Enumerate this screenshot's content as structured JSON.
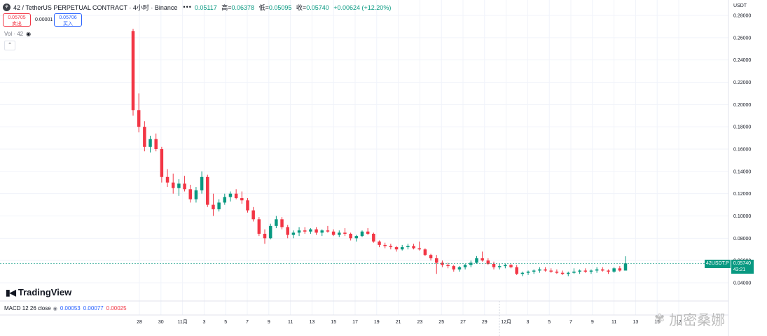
{
  "header": {
    "symbol_icon": "chart-logo-icon",
    "title": "42 / TetherUS PERPETUAL CONTRACT · 4小时 · Binance",
    "ohlc_open_value": "0.05117",
    "ohlc_high_label": "高=",
    "ohlc_high_value": "0.06378",
    "ohlc_low_label": "低=",
    "ohlc_low_value": "0.05095",
    "ohlc_close_label": "收=",
    "ohlc_close_value": "0.05740",
    "ohlc_change": "+0.00624 (+12.20%)"
  },
  "trade": {
    "sell_price": "0.05705",
    "sell_label": "卖出",
    "spread": "0.00001",
    "buy_price": "0.05706",
    "buy_label": "买入"
  },
  "volume": {
    "label": "Vol · 42"
  },
  "price_scale": {
    "unit": "USDT"
  },
  "last_price_tag": {
    "symbol": "42USDT.P",
    "price": "0.05740",
    "countdown": "43:21"
  },
  "macd": {
    "label": "MACD 12 26 close",
    "value1": "0.00053",
    "value2": "0.00077",
    "value3": "0.00025"
  },
  "branding": {
    "logo_text": "TradingView"
  },
  "watermark": {
    "text": "加密桑娜"
  },
  "colors": {
    "up": "#089981",
    "down": "#f23645",
    "accent": "#2962ff",
    "grid": "#f0f3fa"
  },
  "chart_data": {
    "type": "candlestick",
    "title": "42 / TetherUS PERPETUAL CONTRACT · 4小时 · Binance",
    "ylim": [
      0.04,
      0.28
    ],
    "y_ticks": [
      "0.28000",
      "0.26000",
      "0.24000",
      "0.22000",
      "0.20000",
      "0.18000",
      "0.16000",
      "0.14000",
      "0.12000",
      "0.10000",
      "0.08000",
      "0.06000",
      "0.04000"
    ],
    "x_ticks": [
      "28",
      "30",
      "11月",
      "3",
      "5",
      "7",
      "9",
      "11",
      "13",
      "15",
      "17",
      "19",
      "21",
      "23",
      "25",
      "27",
      "29",
      "12月",
      "3",
      "5",
      "7",
      "9",
      "11",
      "13",
      "15",
      "17"
    ],
    "grid": true,
    "series": [
      {
        "values": [
          [
            0.266,
            0.268,
            0.19,
            0.195
          ],
          [
            0.195,
            0.21,
            0.175,
            0.18
          ],
          [
            0.18,
            0.185,
            0.158,
            0.162
          ],
          [
            0.162,
            0.172,
            0.157,
            0.169
          ],
          [
            0.169,
            0.174,
            0.158,
            0.16
          ],
          [
            0.16,
            0.162,
            0.13,
            0.135
          ],
          [
            0.135,
            0.142,
            0.126,
            0.13
          ],
          [
            0.13,
            0.138,
            0.12,
            0.125
          ],
          [
            0.125,
            0.133,
            0.118,
            0.129
          ],
          [
            0.129,
            0.136,
            0.122,
            0.124
          ],
          [
            0.124,
            0.128,
            0.112,
            0.115
          ],
          [
            0.115,
            0.126,
            0.112,
            0.123
          ],
          [
            0.123,
            0.14,
            0.12,
            0.135
          ],
          [
            0.135,
            0.137,
            0.108,
            0.11
          ],
          [
            0.11,
            0.12,
            0.1,
            0.106
          ],
          [
            0.106,
            0.115,
            0.104,
            0.112
          ],
          [
            0.112,
            0.12,
            0.11,
            0.117
          ],
          [
            0.117,
            0.122,
            0.113,
            0.12
          ],
          [
            0.12,
            0.124,
            0.115,
            0.116
          ],
          [
            0.116,
            0.122,
            0.111,
            0.114
          ],
          [
            0.114,
            0.116,
            0.103,
            0.105
          ],
          [
            0.105,
            0.108,
            0.095,
            0.097
          ],
          [
            0.097,
            0.099,
            0.082,
            0.084
          ],
          [
            0.084,
            0.088,
            0.075,
            0.08
          ],
          [
            0.08,
            0.093,
            0.079,
            0.091
          ],
          [
            0.091,
            0.1,
            0.089,
            0.097
          ],
          [
            0.097,
            0.099,
            0.088,
            0.09
          ],
          [
            0.09,
            0.092,
            0.08,
            0.083
          ],
          [
            0.083,
            0.087,
            0.08,
            0.085
          ],
          [
            0.085,
            0.09,
            0.082,
            0.087
          ],
          [
            0.087,
            0.09,
            0.084,
            0.086
          ],
          [
            0.086,
            0.089,
            0.084,
            0.088
          ],
          [
            0.088,
            0.09,
            0.083,
            0.085
          ],
          [
            0.085,
            0.088,
            0.082,
            0.087
          ],
          [
            0.087,
            0.091,
            0.085,
            0.086
          ],
          [
            0.086,
            0.088,
            0.082,
            0.083
          ],
          [
            0.083,
            0.087,
            0.081,
            0.085
          ],
          [
            0.085,
            0.089,
            0.082,
            0.084
          ],
          [
            0.084,
            0.085,
            0.078,
            0.08
          ],
          [
            0.08,
            0.083,
            0.077,
            0.082
          ],
          [
            0.082,
            0.087,
            0.081,
            0.086
          ],
          [
            0.086,
            0.089,
            0.083,
            0.084
          ],
          [
            0.084,
            0.085,
            0.076,
            0.077
          ],
          [
            0.077,
            0.078,
            0.072,
            0.074
          ],
          [
            0.074,
            0.076,
            0.071,
            0.073
          ],
          [
            0.073,
            0.075,
            0.07,
            0.072
          ],
          [
            0.072,
            0.073,
            0.068,
            0.07
          ],
          [
            0.07,
            0.074,
            0.069,
            0.072
          ],
          [
            0.072,
            0.075,
            0.07,
            0.073
          ],
          [
            0.073,
            0.075,
            0.07,
            0.071
          ],
          [
            0.071,
            0.077,
            0.069,
            0.07
          ],
          [
            0.07,
            0.071,
            0.064,
            0.065
          ],
          [
            0.065,
            0.066,
            0.06,
            0.062
          ],
          [
            0.062,
            0.065,
            0.048,
            0.058
          ],
          [
            0.058,
            0.06,
            0.054,
            0.056
          ],
          [
            0.056,
            0.058,
            0.053,
            0.055
          ],
          [
            0.055,
            0.056,
            0.05,
            0.052
          ],
          [
            0.052,
            0.055,
            0.05,
            0.054
          ],
          [
            0.054,
            0.057,
            0.052,
            0.056
          ],
          [
            0.056,
            0.06,
            0.054,
            0.058
          ],
          [
            0.058,
            0.064,
            0.057,
            0.062
          ],
          [
            0.062,
            0.068,
            0.059,
            0.06
          ],
          [
            0.06,
            0.062,
            0.056,
            0.057
          ],
          [
            0.057,
            0.059,
            0.052,
            0.054
          ],
          [
            0.054,
            0.057,
            0.052,
            0.055
          ],
          [
            0.055,
            0.057,
            0.053,
            0.056
          ],
          [
            0.056,
            0.057,
            0.053,
            0.054
          ],
          [
            0.054,
            0.056,
            0.047,
            0.048
          ],
          [
            0.048,
            0.05,
            0.046,
            0.049
          ],
          [
            0.049,
            0.051,
            0.047,
            0.05
          ],
          [
            0.05,
            0.052,
            0.048,
            0.051
          ],
          [
            0.051,
            0.054,
            0.049,
            0.052
          ],
          [
            0.052,
            0.054,
            0.05,
            0.051
          ],
          [
            0.051,
            0.053,
            0.049,
            0.05
          ],
          [
            0.05,
            0.052,
            0.048,
            0.049
          ],
          [
            0.049,
            0.051,
            0.047,
            0.048
          ],
          [
            0.048,
            0.05,
            0.046,
            0.049
          ],
          [
            0.049,
            0.053,
            0.048,
            0.05
          ],
          [
            0.05,
            0.052,
            0.048,
            0.051
          ],
          [
            0.051,
            0.053,
            0.049,
            0.05
          ],
          [
            0.05,
            0.052,
            0.048,
            0.051
          ],
          [
            0.051,
            0.054,
            0.049,
            0.052
          ],
          [
            0.052,
            0.054,
            0.05,
            0.051
          ],
          [
            0.051,
            0.052,
            0.048,
            0.05
          ],
          [
            0.05,
            0.054,
            0.049,
            0.053
          ],
          [
            0.053,
            0.055,
            0.05,
            0.051
          ],
          [
            0.051,
            0.0638,
            0.051,
            0.0574
          ]
        ]
      }
    ],
    "last_price": 0.0574
  }
}
